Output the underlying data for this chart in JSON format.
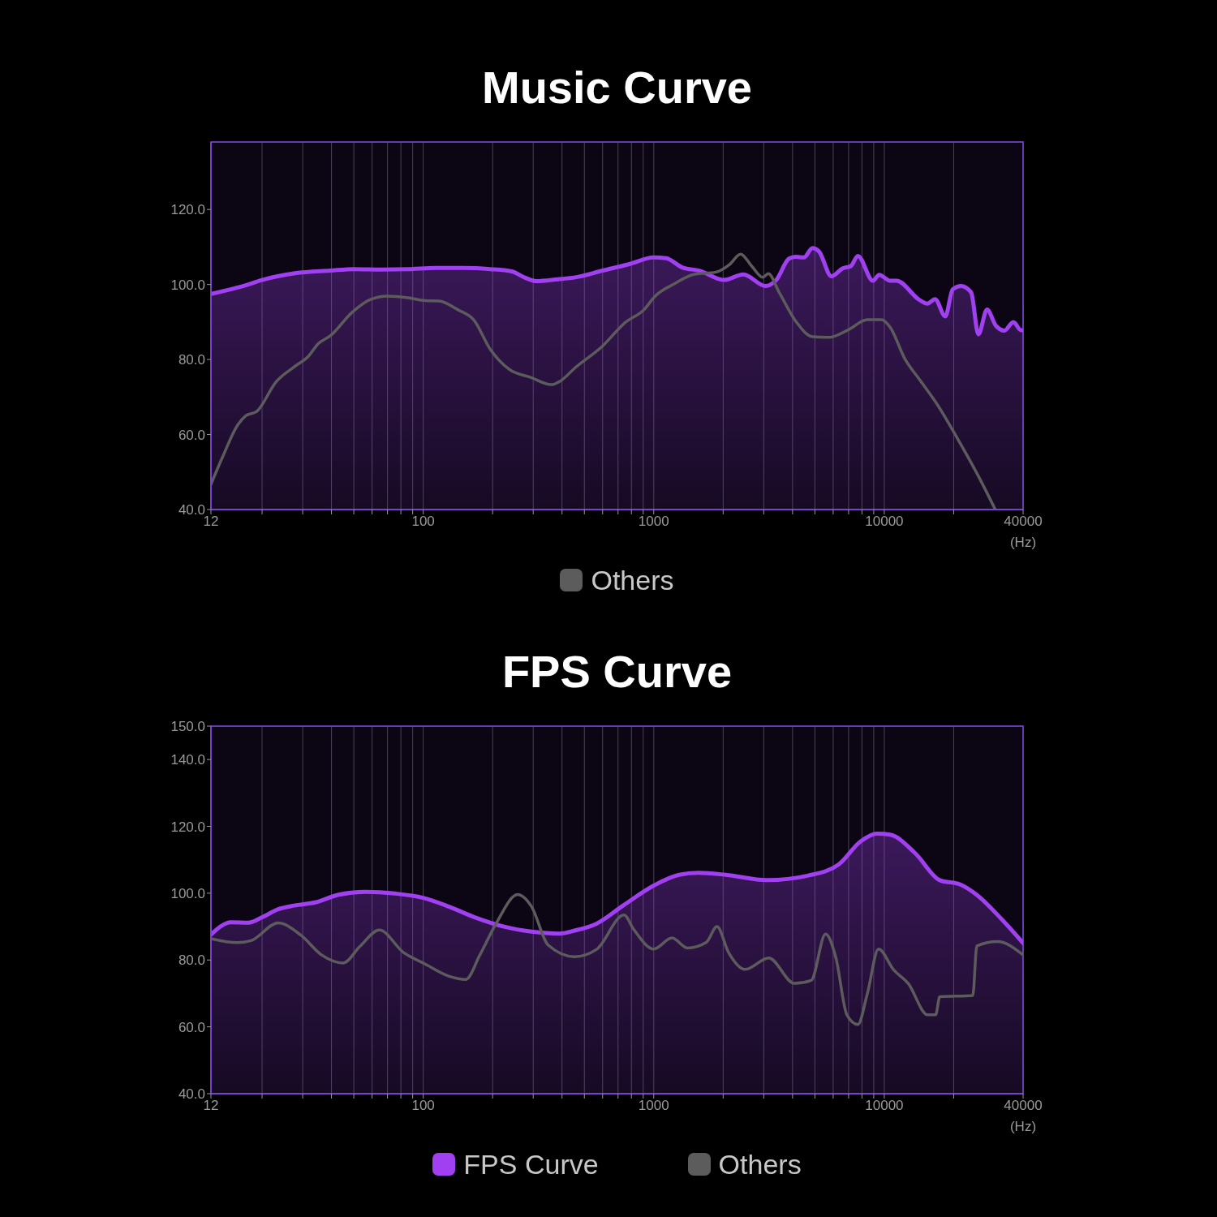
{
  "chart_data": [
    {
      "type": "area",
      "title": "Music Curve",
      "xlabel": "(Hz)",
      "log": "x",
      "xlim": [
        12,
        40000
      ],
      "xticks": [
        12,
        {
          "value": 20,
          "label": null
        },
        {
          "value": 30,
          "label": null
        },
        {
          "value": 40,
          "label": null
        },
        {
          "value": 50,
          "label": null
        },
        {
          "value": 60,
          "label": null
        },
        {
          "value": 70,
          "label": null
        },
        {
          "value": 80,
          "label": null
        },
        {
          "value": 90,
          "label": null
        },
        100,
        {
          "value": 200,
          "label": null
        },
        {
          "value": 300,
          "label": null
        },
        {
          "value": 400,
          "label": null
        },
        {
          "value": 500,
          "label": null
        },
        {
          "value": 600,
          "label": null
        },
        {
          "value": 700,
          "label": null
        },
        {
          "value": 800,
          "label": null
        },
        {
          "value": 900,
          "label": null
        },
        1000,
        {
          "value": 2000,
          "label": null
        },
        {
          "value": 3000,
          "label": null
        },
        {
          "value": 4000,
          "label": null
        },
        {
          "value": 5000,
          "label": null
        },
        {
          "value": 6000,
          "label": null
        },
        {
          "value": 7000,
          "label": null
        },
        {
          "value": 8000,
          "label": null
        },
        {
          "value": 9000,
          "label": null
        },
        10000,
        {
          "value": 20000,
          "label": null
        },
        40000
      ],
      "ylim": [
        40,
        138
      ],
      "yticks": [
        {
          "value": 40,
          "label": "40.0"
        },
        {
          "value": 60,
          "label": "60.0"
        },
        {
          "value": 80,
          "label": "80.0"
        },
        {
          "value": 100,
          "label": "100.0"
        },
        {
          "value": 120,
          "label": "120.0"
        }
      ],
      "grid": true,
      "legend": "bottom",
      "series": [
        {
          "color": "#a040f0",
          "x": [
            12,
            17,
            20,
            27.8,
            39.5,
            50,
            66,
            87,
            113,
            149,
            195,
            242,
            277,
            309,
            384,
            456,
            600,
            790,
            1000,
            1130,
            1335,
            1575,
            2020,
            2450,
            3050,
            3400,
            3860,
            4130,
            4480,
            4880,
            5210,
            5900,
            6600,
            7160,
            7680,
            8930,
            9500,
            10600,
            11300,
            14200,
            15400,
            16600,
            18400,
            19800,
            21500,
            23800,
            25600,
            27900,
            30500,
            33200,
            36300,
            39200,
            40000
          ],
          "values": [
            97.5,
            99.8,
            101.2,
            103,
            103.7,
            104.1,
            104,
            104.1,
            104.4,
            104.4,
            104.1,
            103.5,
            101.8,
            100.9,
            101.4,
            101.9,
            103.7,
            105.5,
            107.2,
            107,
            104.5,
            103.7,
            101.2,
            102.7,
            99.6,
            101.2,
            106.9,
            107.4,
            107.2,
            109.7,
            108.8,
            102.2,
            104.3,
            104.9,
            107.6,
            101,
            102.6,
            101,
            101,
            95.9,
            94.9,
            96.1,
            91.5,
            98.7,
            99.6,
            97.9,
            86.7,
            93.3,
            89,
            87.7,
            90,
            87.8,
            87.8
          ]
        },
        {
          "name": "Others",
          "type": "line",
          "color": "#5c5c5c",
          "x": [
            12,
            13.5,
            15.7,
            17,
            19,
            22.9,
            27.8,
            31.8,
            35,
            39.5,
            49,
            59,
            70,
            87,
            102,
            117,
            141,
            166,
            195,
            236,
            294,
            359,
            394,
            456,
            600,
            749,
            908,
            1010,
            1230,
            1490,
            1860,
            2130,
            2380,
            2660,
            2970,
            3140,
            3500,
            4130,
            4880,
            5750,
            6970,
            8440,
            9700,
            10600,
            12300,
            14200,
            17100,
            21000,
            25900,
            30300
          ],
          "values": [
            46.7,
            54.1,
            62.6,
            65,
            66.2,
            73.9,
            78.2,
            80.9,
            84.2,
            86.3,
            92.5,
            96,
            96.9,
            96.4,
            95.7,
            95.6,
            93.3,
            90.5,
            82.8,
            77.4,
            75.2,
            73.3,
            74.3,
            77.8,
            83.6,
            89.8,
            93.3,
            96.8,
            100.2,
            102.7,
            103.3,
            105.3,
            108.1,
            104.9,
            101.9,
            102.9,
            97.9,
            90.2,
            86.1,
            85.9,
            87.9,
            90.6,
            90.6,
            88.6,
            80.1,
            74.7,
            67.7,
            58.4,
            48.3,
            40
          ]
        }
      ]
    },
    {
      "type": "area",
      "title": "FPS Curve",
      "xlabel": "(Hz)",
      "log": "x",
      "xlim": [
        12,
        40000
      ],
      "xticks": [
        12,
        {
          "value": 20,
          "label": null
        },
        {
          "value": 30,
          "label": null
        },
        {
          "value": 40,
          "label": null
        },
        {
          "value": 50,
          "label": null
        },
        {
          "value": 60,
          "label": null
        },
        {
          "value": 70,
          "label": null
        },
        {
          "value": 80,
          "label": null
        },
        {
          "value": 90,
          "label": null
        },
        100,
        {
          "value": 200,
          "label": null
        },
        {
          "value": 300,
          "label": null
        },
        {
          "value": 400,
          "label": null
        },
        {
          "value": 500,
          "label": null
        },
        {
          "value": 600,
          "label": null
        },
        {
          "value": 700,
          "label": null
        },
        {
          "value": 800,
          "label": null
        },
        {
          "value": 900,
          "label": null
        },
        1000,
        {
          "value": 2000,
          "label": null
        },
        {
          "value": 3000,
          "label": null
        },
        {
          "value": 4000,
          "label": null
        },
        {
          "value": 5000,
          "label": null
        },
        {
          "value": 6000,
          "label": null
        },
        {
          "value": 7000,
          "label": null
        },
        {
          "value": 8000,
          "label": null
        },
        {
          "value": 9000,
          "label": null
        },
        10000,
        {
          "value": 20000,
          "label": null
        },
        40000
      ],
      "ylim": [
        40,
        150
      ],
      "yticks": [
        {
          "value": 40,
          "label": "40.0"
        },
        {
          "value": 60,
          "label": "60.0"
        },
        {
          "value": 80,
          "label": "80.0"
        },
        {
          "value": 100,
          "label": "100.0"
        },
        {
          "value": 120,
          "label": "120.0"
        },
        {
          "value": 140,
          "label": "140.0"
        },
        {
          "value": 150,
          "label": "150.0"
        }
      ],
      "grid": true,
      "legend": "bottom",
      "series": [
        {
          "name": "FPS Curve",
          "color": "#a040f0",
          "x": [
            12,
            13.3,
            14.6,
            17.5,
            20,
            23.5,
            27.6,
            34.3,
            42.6,
            56,
            75.5,
            100,
            129,
            170,
            224,
            295,
            389,
            453,
            565,
            743,
            1000,
            1288,
            1560,
            2050,
            3100,
            4690,
            6340,
            7900,
            9300,
            10600,
            13600,
            17400,
            21400,
            25200,
            32300,
            40000
          ],
          "values": [
            87.6,
            90.2,
            91.3,
            91.2,
            92.8,
            95.2,
            96.3,
            97.3,
            99.5,
            100.4,
            99.9,
            98.6,
            96,
            92.6,
            90,
            88.5,
            87.9,
            88.8,
            90.9,
            96.5,
            102.3,
            105.5,
            106.1,
            105.5,
            103.9,
            105.3,
            108.6,
            115.5,
            117.8,
            117.5,
            112,
            103.9,
            102.6,
            99.5,
            92.2,
            85.1
          ]
        },
        {
          "name": "Others",
          "type": "line",
          "color": "#5c5c5c",
          "x": [
            12,
            15.6,
            17.9,
            23.5,
            29.4,
            36.3,
            45,
            53,
            64.5,
            82,
            102,
            129,
            153,
            176,
            207,
            257,
            295,
            348,
            453,
            565,
            743,
            818,
            1000,
            1200,
            1400,
            1690,
            1880,
            2110,
            2490,
            3150,
            4080,
            4820,
            5560,
            6170,
            6880,
            7680,
            8440,
            9440,
            11000,
            12700,
            15400,
            16700,
            17400,
            24200,
            25200,
            31000,
            40000
          ],
          "values": [
            86.4,
            85.2,
            85.8,
            91.1,
            87.5,
            81.5,
            79.1,
            84,
            89,
            82.3,
            78.8,
            75.2,
            74.2,
            81.5,
            90.9,
            99.6,
            96,
            84.5,
            81,
            83.2,
            93.5,
            89.2,
            83.3,
            86.6,
            83.6,
            85.3,
            90,
            82.3,
            77.2,
            80.6,
            73,
            73.9,
            87.8,
            80.6,
            63.6,
            60.7,
            69.9,
            83.3,
            77,
            73,
            63.6,
            63.6,
            69,
            69.4,
            84.2,
            85.5,
            81.5
          ]
        }
      ]
    }
  ]
}
